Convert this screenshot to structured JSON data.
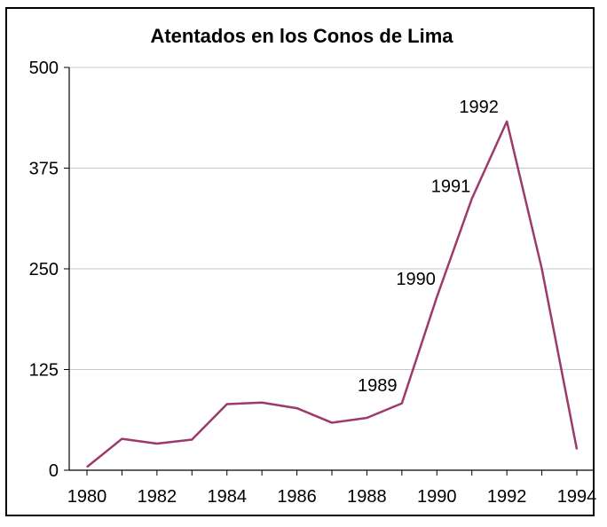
{
  "chart_data": {
    "type": "line",
    "title": "Atentados en los Conos de Lima",
    "xlabel": "",
    "ylabel": "",
    "x": [
      1980,
      1981,
      1982,
      1983,
      1984,
      1985,
      1986,
      1987,
      1988,
      1989,
      1990,
      1991,
      1992,
      1993,
      1994
    ],
    "series": [
      {
        "name": "Atentados",
        "color": "#9b3a6b",
        "values": [
          4,
          39,
          33,
          38,
          82,
          84,
          77,
          59,
          65,
          83,
          215,
          337,
          433,
          250,
          26
        ]
      }
    ],
    "xlim": [
      1980,
      1994
    ],
    "ylim": [
      0,
      500
    ],
    "xticks": [
      "1980",
      "1982",
      "1984",
      "1986",
      "1988",
      "1990",
      "1992",
      "1994"
    ],
    "yticks": [
      "0",
      "125",
      "250",
      "375",
      "500"
    ],
    "grid": "horizontal",
    "annotations": [
      {
        "text": "1989",
        "x": 1988.3,
        "y": 98
      },
      {
        "text": "1990",
        "x": 1989.4,
        "y": 230
      },
      {
        "text": "1991",
        "x": 1990.4,
        "y": 345
      },
      {
        "text": "1992",
        "x": 1991.2,
        "y": 444
      }
    ]
  }
}
